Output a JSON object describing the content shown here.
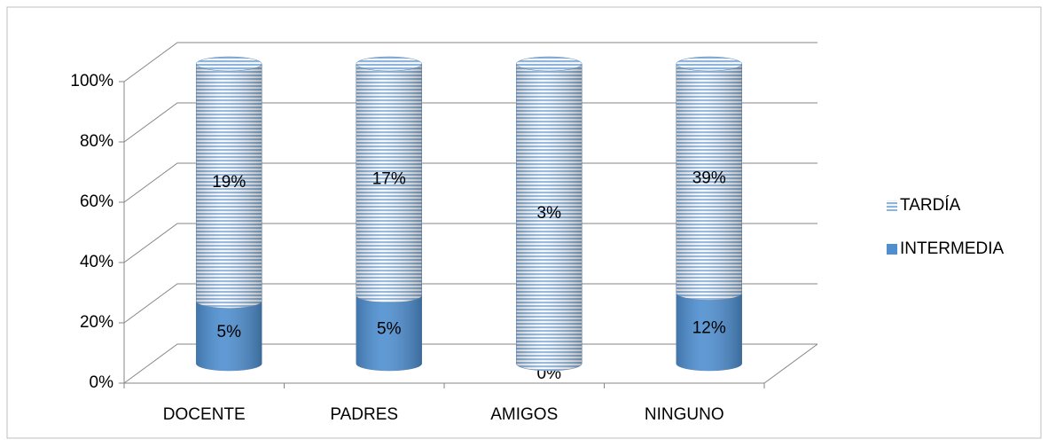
{
  "chart_data": {
    "type": "bar",
    "stacking": "percent",
    "categories": [
      "DOCENTE",
      "PADRES",
      "AMIGOS",
      "NINGUNO"
    ],
    "series": [
      {
        "name": "INTERMEDIA",
        "color": "#4f8fd0",
        "values": [
          5,
          5,
          0,
          12
        ],
        "value_labels": [
          "5%",
          "5%",
          "0%",
          "12%"
        ]
      },
      {
        "name": "TARDÍA",
        "color": "#8fb4dc",
        "pattern": "horizontal-stripes",
        "values": [
          19,
          17,
          3,
          39
        ],
        "value_labels": [
          "19%",
          "17%",
          "3%",
          "39%"
        ]
      }
    ],
    "ylim": [
      0,
      100
    ],
    "yticks": [
      {
        "value": 0,
        "label": "0%"
      },
      {
        "value": 20,
        "label": "20%"
      },
      {
        "value": 40,
        "label": "40%"
      },
      {
        "value": 60,
        "label": "60%"
      },
      {
        "value": 80,
        "label": "80%"
      },
      {
        "value": 100,
        "label": "100%"
      }
    ],
    "grid": true,
    "legend": "right"
  }
}
